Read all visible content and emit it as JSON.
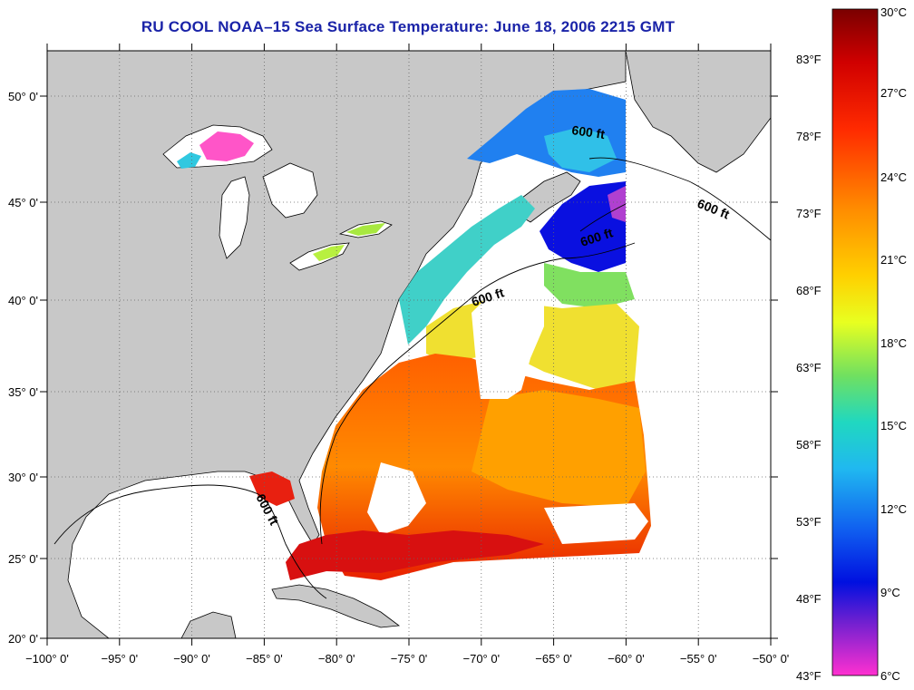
{
  "title": "RU COOL  NOAA–15  Sea Surface Temperature:  June 18, 2006 2215 GMT",
  "map": {
    "lon_ticks": [
      "−100° 0'",
      "−95° 0'",
      "−90° 0'",
      "−85° 0'",
      "−80° 0'",
      "−75° 0'",
      "−70° 0'",
      "−65° 0'",
      "−60° 0'",
      "−55° 0'",
      "−50° 0'"
    ],
    "lat_ticks": [
      "50° 0'",
      "45° 0'",
      "40° 0'",
      "35° 0'",
      "30° 0'",
      "25° 0'",
      "20° 0'"
    ],
    "contour_labels": [
      "600 ft",
      "600 ft",
      "600 ft",
      "600 ft",
      "600 ft"
    ],
    "land_color": "#c8c8c8",
    "nodata_color": "#ffffff"
  },
  "colorbar": {
    "celsius": [
      "30°C",
      "27°C",
      "24°C",
      "21°C",
      "18°C",
      "15°C",
      "12°C",
      "9°C",
      "6°C"
    ],
    "fahrenheit": [
      "83°F",
      "78°F",
      "73°F",
      "68°F",
      "63°F",
      "58°F",
      "53°F",
      "48°F",
      "43°F"
    ],
    "colors": [
      "#8b0000",
      "#e00000",
      "#ff4000",
      "#ff9000",
      "#ffd000",
      "#e8ff20",
      "#60e860",
      "#20d8c0",
      "#20a8f0",
      "#1060f0",
      "#0010e0",
      "#6020d0",
      "#c040d0",
      "#ff30d0"
    ]
  }
}
